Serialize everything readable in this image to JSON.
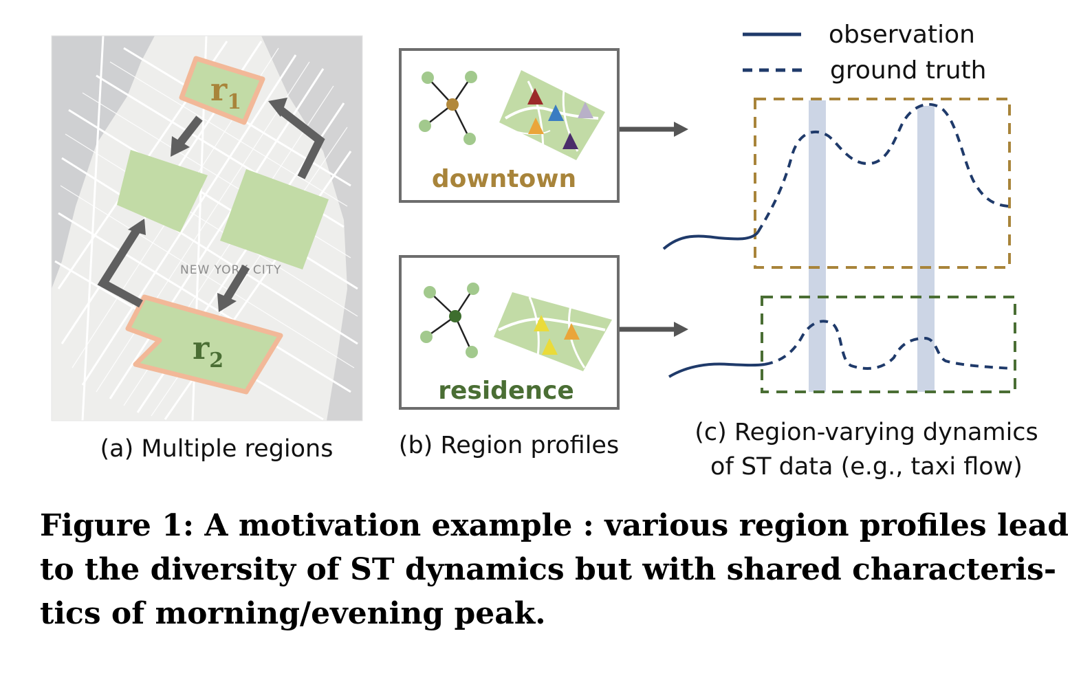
{
  "panel_a": {
    "map_label": "NEW YORK CITY",
    "regions": [
      {
        "letter": "r",
        "sub": "1"
      },
      {
        "letter": "r",
        "sub": "2"
      }
    ],
    "caption": "(a) Multiple regions"
  },
  "panel_b": {
    "profiles": [
      "downtown",
      "residence"
    ],
    "caption": "(b) Region profiles"
  },
  "panel_c": {
    "legend": [
      "observation",
      "ground truth"
    ],
    "caption_lines": [
      "(c) Region-varying dynamics",
      "of ST data (e.g., taxi flow)"
    ]
  },
  "figure_caption_lines": [
    "Figure 1: A motivation example : various region profiles lead",
    "to the diversity of ST dynamics but with shared characteris-",
    "tics of morning/evening peak."
  ],
  "colors": {
    "downtown": "#a8843a",
    "residence": "#4a6e34",
    "region_fill": "#c2dba6",
    "region_border": "#f2b898",
    "line": "#1f3a6a",
    "band": "#ccd5e5",
    "arrow": "#5f5f5f"
  }
}
